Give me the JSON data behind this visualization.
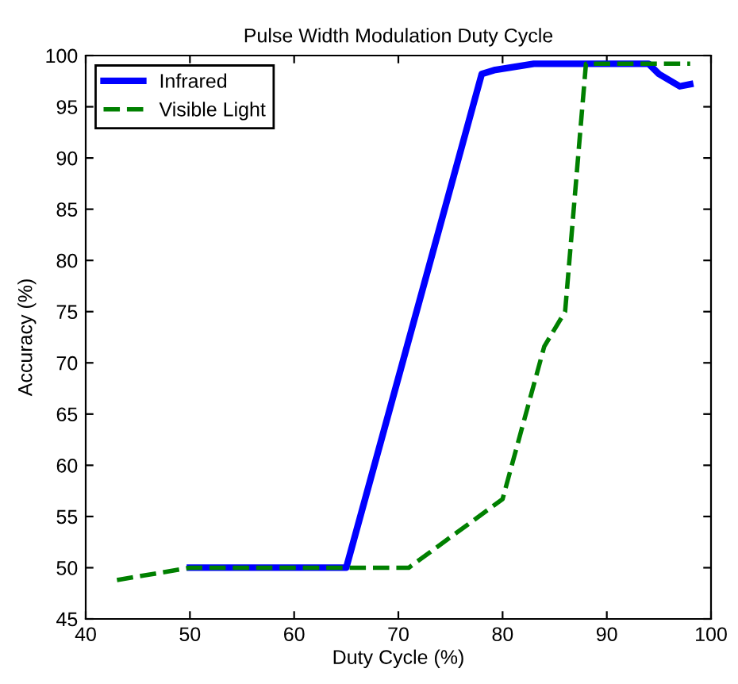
{
  "chart_data": {
    "type": "line",
    "title": "Pulse Width Modulation Duty Cycle",
    "xlabel": "Duty Cycle (%)",
    "ylabel": "Accuracy (%)",
    "xlim": [
      40,
      100
    ],
    "xticks": [
      40,
      50,
      60,
      70,
      80,
      90,
      100
    ],
    "ylim": [
      45,
      100
    ],
    "yticks": [
      45,
      50,
      55,
      60,
      65,
      70,
      75,
      80,
      85,
      90,
      95,
      100
    ],
    "grid": false,
    "legend": "top left",
    "marker": "none",
    "series": [
      {
        "name": "Infrared",
        "color": "#0000ff",
        "line_style": "solid",
        "x": [
          50,
          65,
          78,
          79.3,
          83,
          94,
          95,
          97,
          98
        ],
        "values": [
          50,
          50,
          98.2,
          98.6,
          99.2,
          99.2,
          98.2,
          97,
          97.2
        ]
      },
      {
        "name": "Visible Light",
        "color": "#008000",
        "line_style": "dashed",
        "x": [
          43,
          50,
          71,
          80,
          84,
          86,
          88,
          98
        ],
        "values": [
          48.8,
          50,
          50,
          56.7,
          71.6,
          75,
          99.2,
          99.2
        ]
      }
    ]
  }
}
